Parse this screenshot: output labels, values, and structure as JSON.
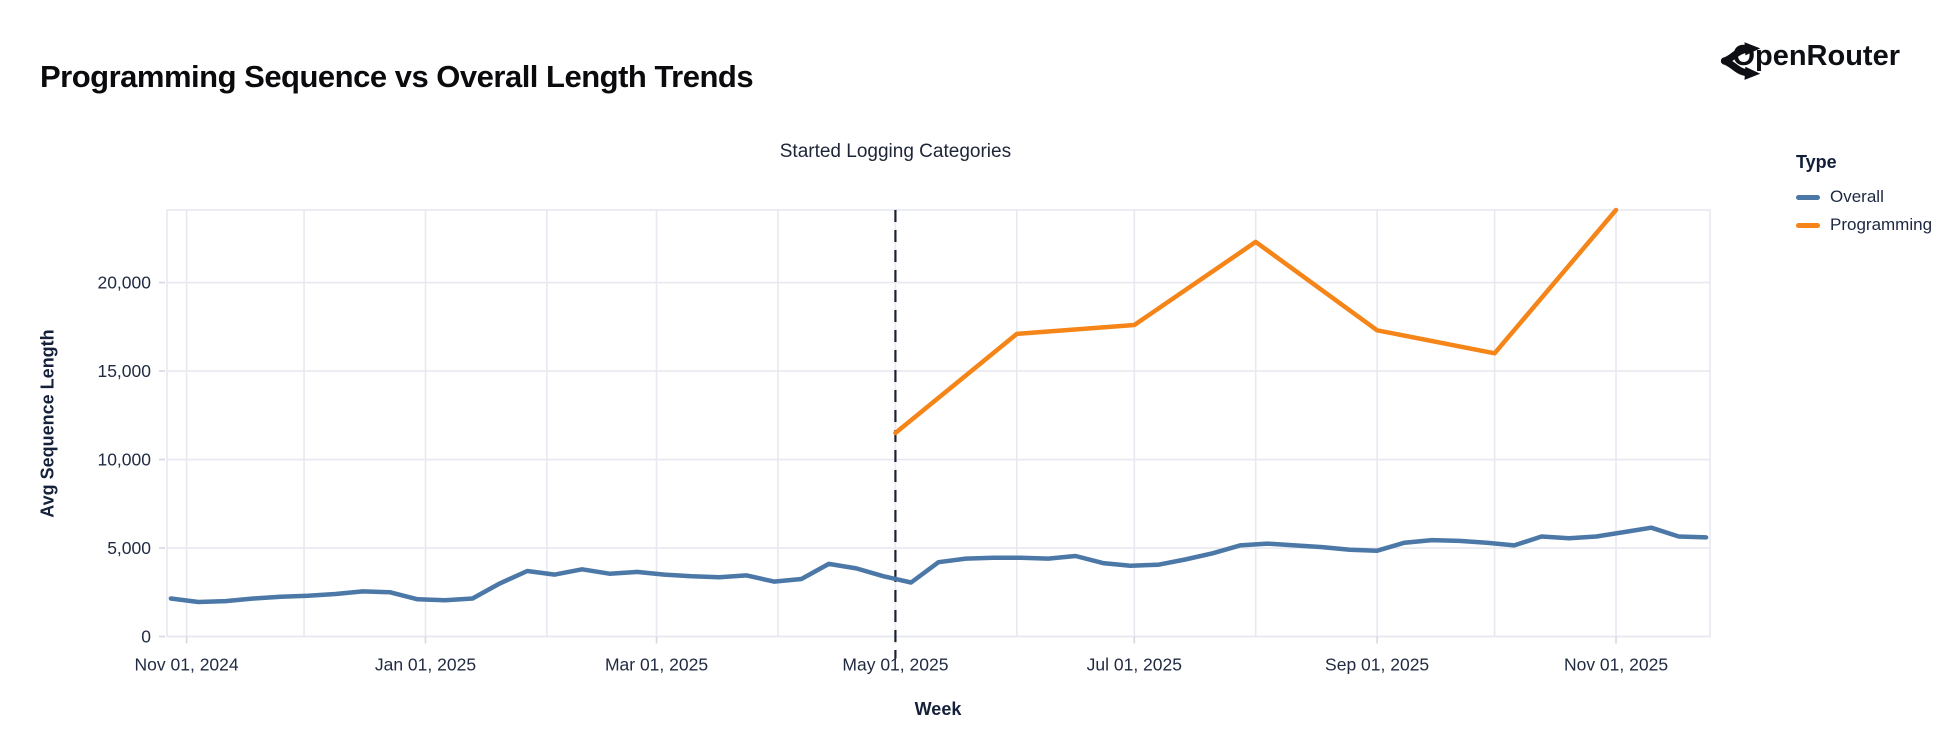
{
  "header": {
    "title": "Programming Sequence vs Overall Length Trends",
    "logo_text": "OpenRouter"
  },
  "legend": {
    "title": "Type",
    "items": [
      {
        "label": "Overall",
        "color": "#4c78a8"
      },
      {
        "label": "Programming",
        "color": "#f58518"
      }
    ]
  },
  "chart_data": {
    "type": "line",
    "title": "Programming Sequence vs Overall Length Trends",
    "xlabel": "Week",
    "ylabel": "Avg Sequence Length",
    "legend_position": "right",
    "grid": true,
    "annotation": {
      "text": "Started Logging Categories",
      "date": "2025-05-01"
    },
    "rule": {
      "date": "2025-05-01",
      "style": "dashed",
      "color": "#1b2130"
    },
    "x_domain": [
      "2024-10-27",
      "2025-11-25"
    ],
    "y_domain": [
      0,
      24100
    ],
    "x_ticks": [
      {
        "date": "2024-11-01",
        "label": "Nov 01, 2024"
      },
      {
        "date": "2025-01-01",
        "label": "Jan 01, 2025"
      },
      {
        "date": "2025-03-01",
        "label": "Mar 01, 2025"
      },
      {
        "date": "2025-05-01",
        "label": "May 01, 2025"
      },
      {
        "date": "2025-07-01",
        "label": "Jul 01, 2025"
      },
      {
        "date": "2025-09-01",
        "label": "Sep 01, 2025"
      },
      {
        "date": "2025-11-01",
        "label": "Nov 01, 2025"
      }
    ],
    "y_ticks": [
      {
        "value": 0,
        "label": "0"
      },
      {
        "value": 5000,
        "label": "5,000"
      },
      {
        "value": 10000,
        "label": "10,000"
      },
      {
        "value": 15000,
        "label": "15,000"
      },
      {
        "value": 20000,
        "label": "20,000"
      }
    ],
    "month_gridlines": [
      "2024-11-01",
      "2024-12-01",
      "2025-01-01",
      "2025-02-01",
      "2025-03-01",
      "2025-04-01",
      "2025-05-01",
      "2025-06-01",
      "2025-07-01",
      "2025-08-01",
      "2025-09-01",
      "2025-10-01",
      "2025-11-01"
    ],
    "series": [
      {
        "name": "Overall",
        "color": "#4c78a8",
        "cadence": "weekly",
        "points": [
          [
            "2024-10-28",
            2150
          ],
          [
            "2024-11-04",
            1950
          ],
          [
            "2024-11-11",
            2000
          ],
          [
            "2024-11-18",
            2150
          ],
          [
            "2024-11-25",
            2250
          ],
          [
            "2024-12-02",
            2300
          ],
          [
            "2024-12-09",
            2400
          ],
          [
            "2024-12-16",
            2550
          ],
          [
            "2024-12-23",
            2500
          ],
          [
            "2024-12-30",
            2100
          ],
          [
            "2025-01-06",
            2050
          ],
          [
            "2025-01-13",
            2150
          ],
          [
            "2025-01-20",
            3000
          ],
          [
            "2025-01-27",
            3700
          ],
          [
            "2025-02-03",
            3500
          ],
          [
            "2025-02-10",
            3800
          ],
          [
            "2025-02-17",
            3550
          ],
          [
            "2025-02-24",
            3650
          ],
          [
            "2025-03-03",
            3500
          ],
          [
            "2025-03-10",
            3400
          ],
          [
            "2025-03-17",
            3350
          ],
          [
            "2025-03-24",
            3450
          ],
          [
            "2025-03-31",
            3100
          ],
          [
            "2025-04-07",
            3250
          ],
          [
            "2025-04-14",
            4100
          ],
          [
            "2025-04-21",
            3850
          ],
          [
            "2025-04-28",
            3400
          ],
          [
            "2025-05-05",
            3050
          ],
          [
            "2025-05-12",
            4200
          ],
          [
            "2025-05-19",
            4400
          ],
          [
            "2025-05-26",
            4450
          ],
          [
            "2025-06-02",
            4450
          ],
          [
            "2025-06-09",
            4400
          ],
          [
            "2025-06-16",
            4550
          ],
          [
            "2025-06-23",
            4150
          ],
          [
            "2025-06-30",
            4000
          ],
          [
            "2025-07-07",
            4050
          ],
          [
            "2025-07-14",
            4350
          ],
          [
            "2025-07-21",
            4700
          ],
          [
            "2025-07-28",
            5150
          ],
          [
            "2025-08-04",
            5250
          ],
          [
            "2025-08-11",
            5150
          ],
          [
            "2025-08-18",
            5050
          ],
          [
            "2025-08-25",
            4900
          ],
          [
            "2025-09-01",
            4850
          ],
          [
            "2025-09-08",
            5300
          ],
          [
            "2025-09-15",
            5450
          ],
          [
            "2025-09-22",
            5400
          ],
          [
            "2025-09-29",
            5300
          ],
          [
            "2025-10-06",
            5150
          ],
          [
            "2025-10-13",
            5650
          ],
          [
            "2025-10-20",
            5550
          ],
          [
            "2025-10-27",
            5650
          ],
          [
            "2025-11-03",
            5900
          ],
          [
            "2025-11-10",
            6150
          ],
          [
            "2025-11-17",
            5650
          ],
          [
            "2025-11-24",
            5600
          ]
        ]
      },
      {
        "name": "Programming",
        "color": "#f58518",
        "cadence": "monthly",
        "points": [
          [
            "2025-05-01",
            11500
          ],
          [
            "2025-06-01",
            17100
          ],
          [
            "2025-07-01",
            17600
          ],
          [
            "2025-08-01",
            22300
          ],
          [
            "2025-09-01",
            17300
          ],
          [
            "2025-10-01",
            16000
          ],
          [
            "2025-11-01",
            24100
          ]
        ]
      }
    ]
  }
}
